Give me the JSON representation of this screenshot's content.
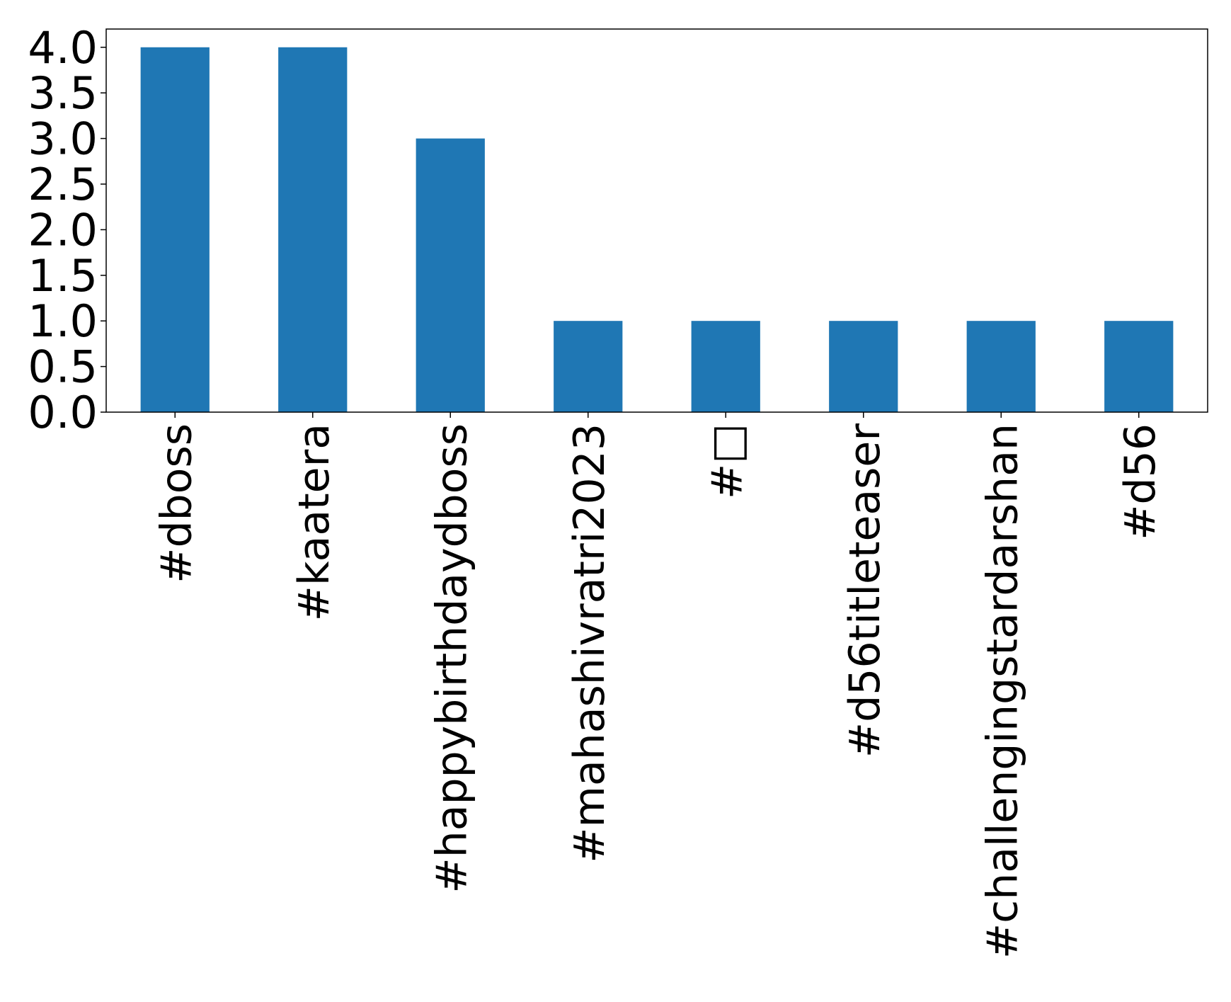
{
  "chart_data": {
    "type": "bar",
    "title": "",
    "xlabel": "",
    "ylabel": "",
    "categories": [
      "#dboss",
      "#kaatera",
      "#happybirthdaydboss",
      "#mahashivratri2023",
      "#□",
      "#d56titleteaser",
      "#challengingstardarshan",
      "#d56"
    ],
    "values": [
      4,
      4,
      3,
      1,
      1,
      1,
      1,
      1
    ],
    "ylim": [
      0,
      4.2
    ],
    "yticks": [
      "0.0",
      "0.5",
      "1.0",
      "1.5",
      "2.0",
      "2.5",
      "3.0",
      "3.5",
      "4.0"
    ],
    "bar_color": "#1f77b4",
    "grid": false,
    "legend": "none"
  }
}
